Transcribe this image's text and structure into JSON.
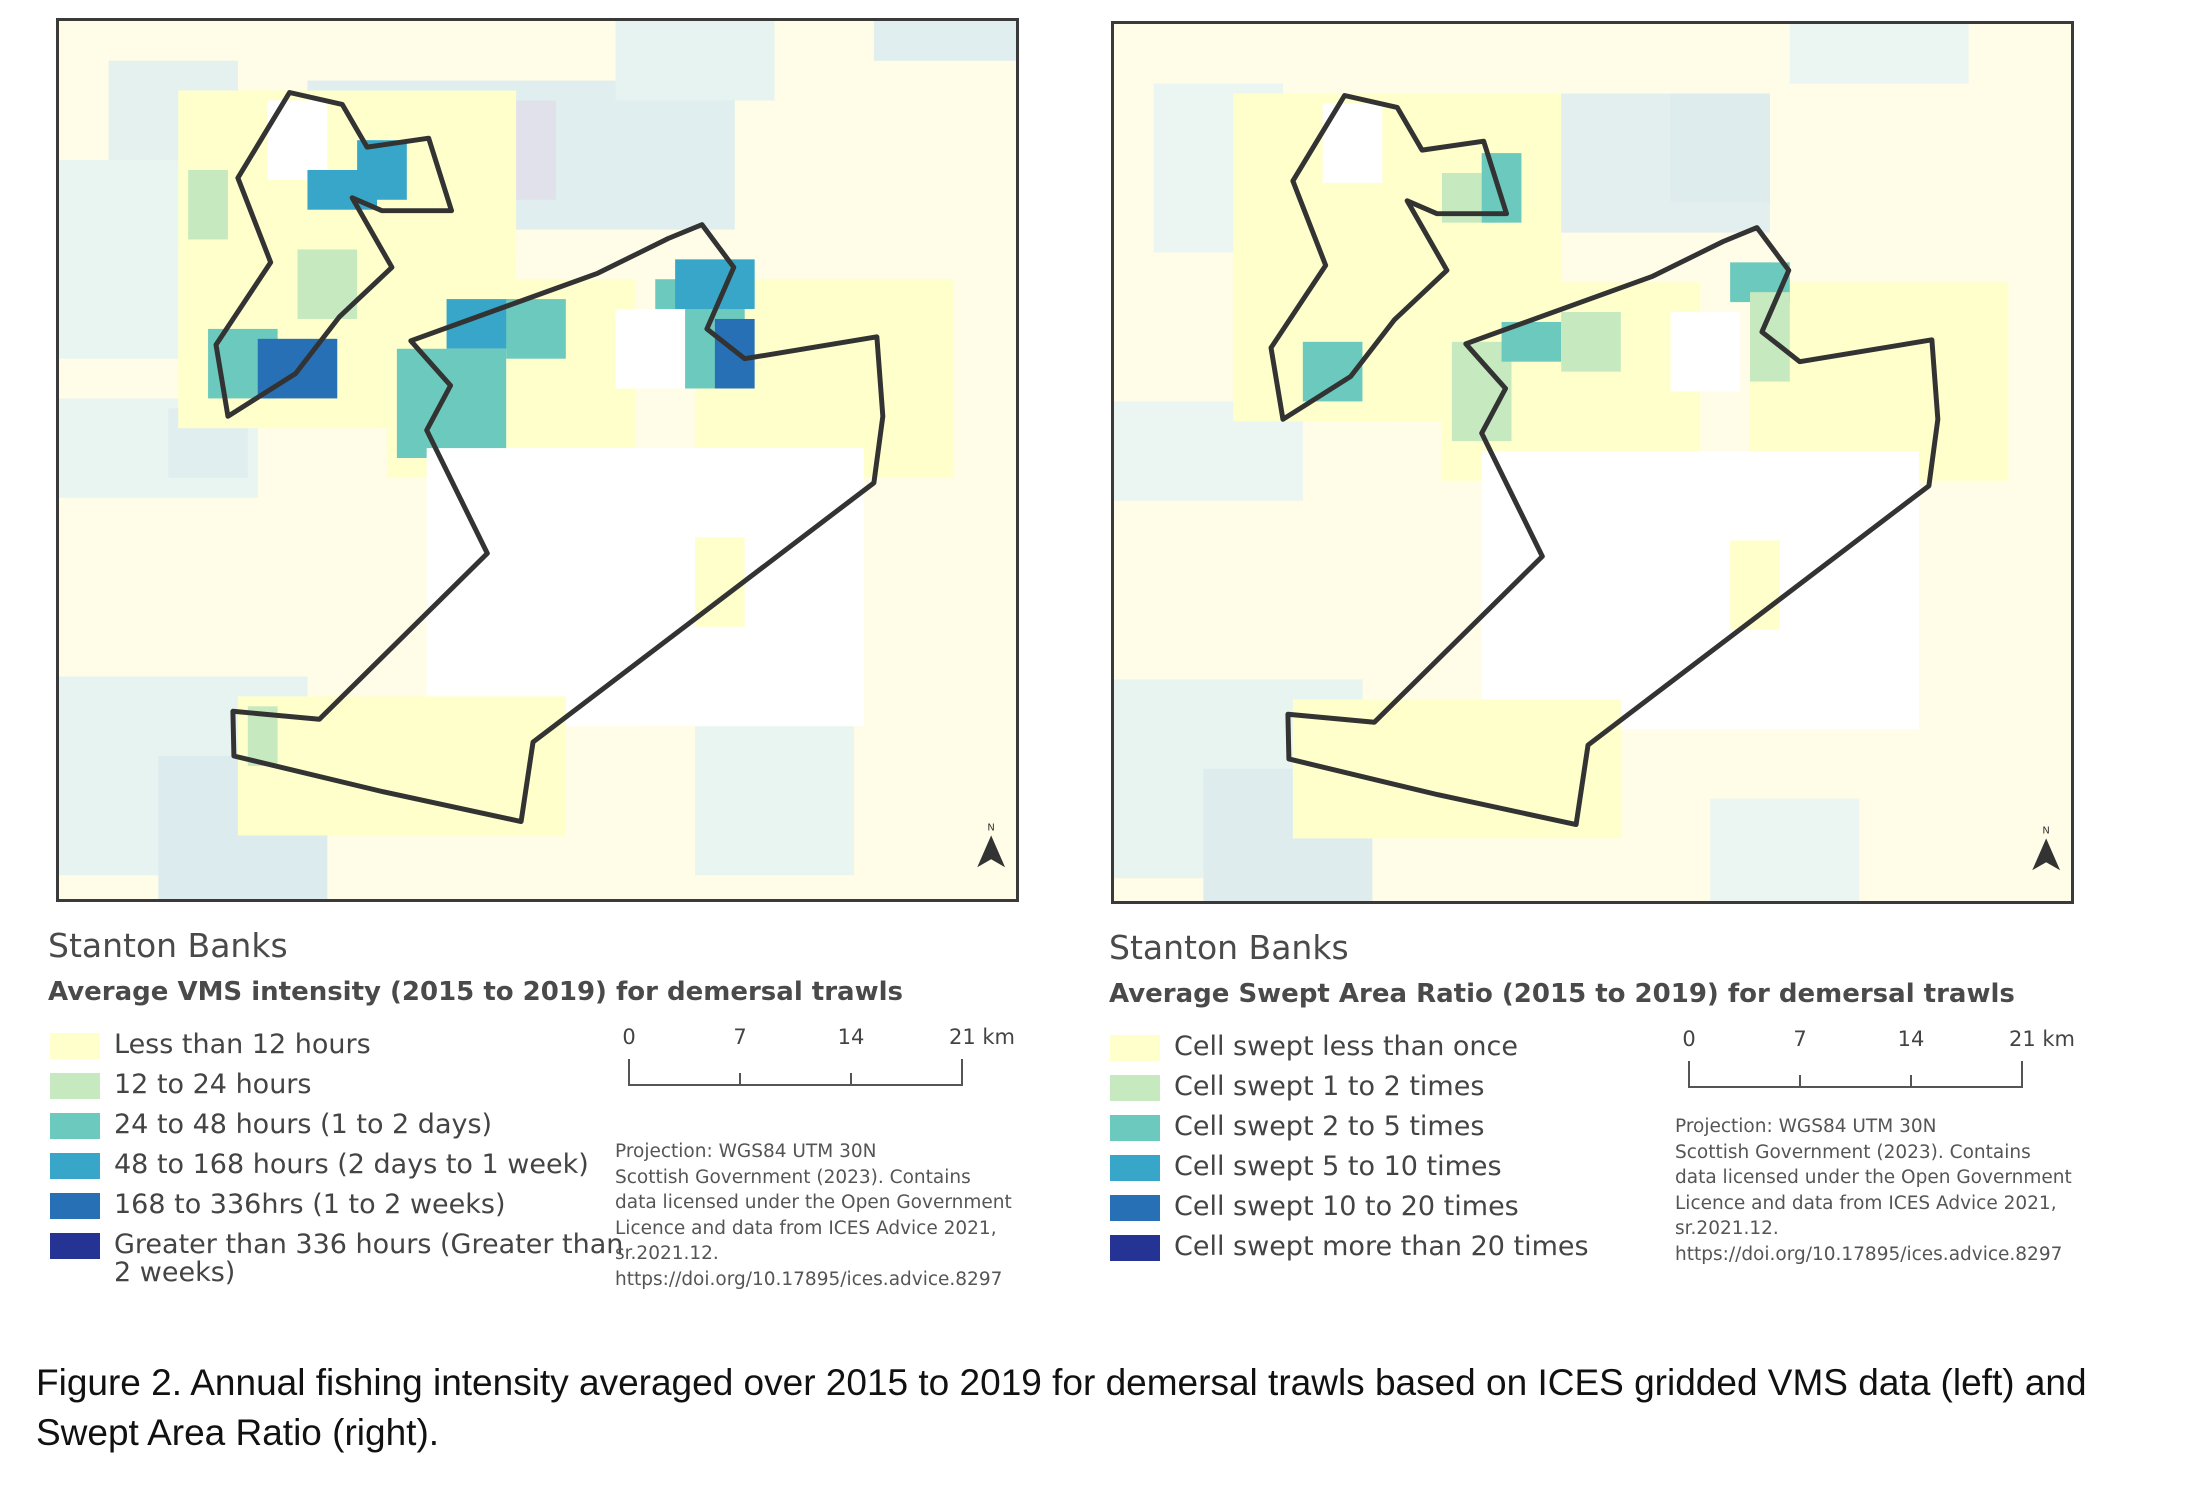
{
  "panels": [
    {
      "title": "Stanton Banks",
      "subtitle": "Average VMS intensity (2015 to 2019) for demersal trawls",
      "legend": [
        {
          "label": "Less than 12 hours",
          "color": "#ffffcc"
        },
        {
          "label": "12 to 24 hours",
          "color": "#c7e9c0"
        },
        {
          "label": "24 to 48 hours (1 to 2 days)",
          "color": "#6cc9bd"
        },
        {
          "label": "48 to 168 hours (2 days to 1 week)",
          "color": "#37a6c8"
        },
        {
          "label": "168 to 336hrs (1 to 2 weeks)",
          "color": "#2870b5"
        },
        {
          "label_line1": "Greater than 336 hours (Greater than",
          "label_line2": "2 weeks)",
          "color": "#253494"
        }
      ],
      "scale": {
        "ticks": [
          "0",
          "7",
          "14",
          "21 km"
        ]
      },
      "notes": [
        "Projection: WGS84 UTM 30N",
        "Scottish Government (2023). Contains",
        "data licensed under the Open Government",
        "Licence and data from ICES Advice 2021,",
        "sr.2021.12.",
        "https://doi.org/10.17895/ices.advice.8297"
      ],
      "north_label": "N"
    },
    {
      "title": "Stanton Banks",
      "subtitle": "Average Swept Area Ratio (2015 to 2019) for demersal trawls",
      "legend": [
        {
          "label": "Cell swept less than once",
          "color": "#ffffcc"
        },
        {
          "label": "Cell swept 1 to 2 times",
          "color": "#c7e9c0"
        },
        {
          "label": "Cell swept 2 to 5 times",
          "color": "#6cc9bd"
        },
        {
          "label": "Cell swept 5 to 10 times",
          "color": "#37a6c8"
        },
        {
          "label": "Cell swept 10 to 20 times",
          "color": "#2870b5"
        },
        {
          "label": "Cell swept more than 20 times",
          "color": "#253494"
        }
      ],
      "scale": {
        "ticks": [
          "0",
          "7",
          "14",
          "21 km"
        ]
      },
      "notes": [
        "Projection: WGS84 UTM 30N",
        "Scottish Government (2023). Contains",
        "data licensed under the Open Government",
        "Licence and data from ICES Advice 2021,",
        "sr.2021.12.",
        "https://doi.org/10.17895/ices.advice.8297"
      ],
      "north_label": "N"
    }
  ],
  "caption": {
    "line1": "Figure 2. Annual fishing intensity averaged over 2015 to 2019 for demersal trawls based on ICES gridded VMS data (left) and",
    "line2": "Swept Area Ratio (right)."
  }
}
